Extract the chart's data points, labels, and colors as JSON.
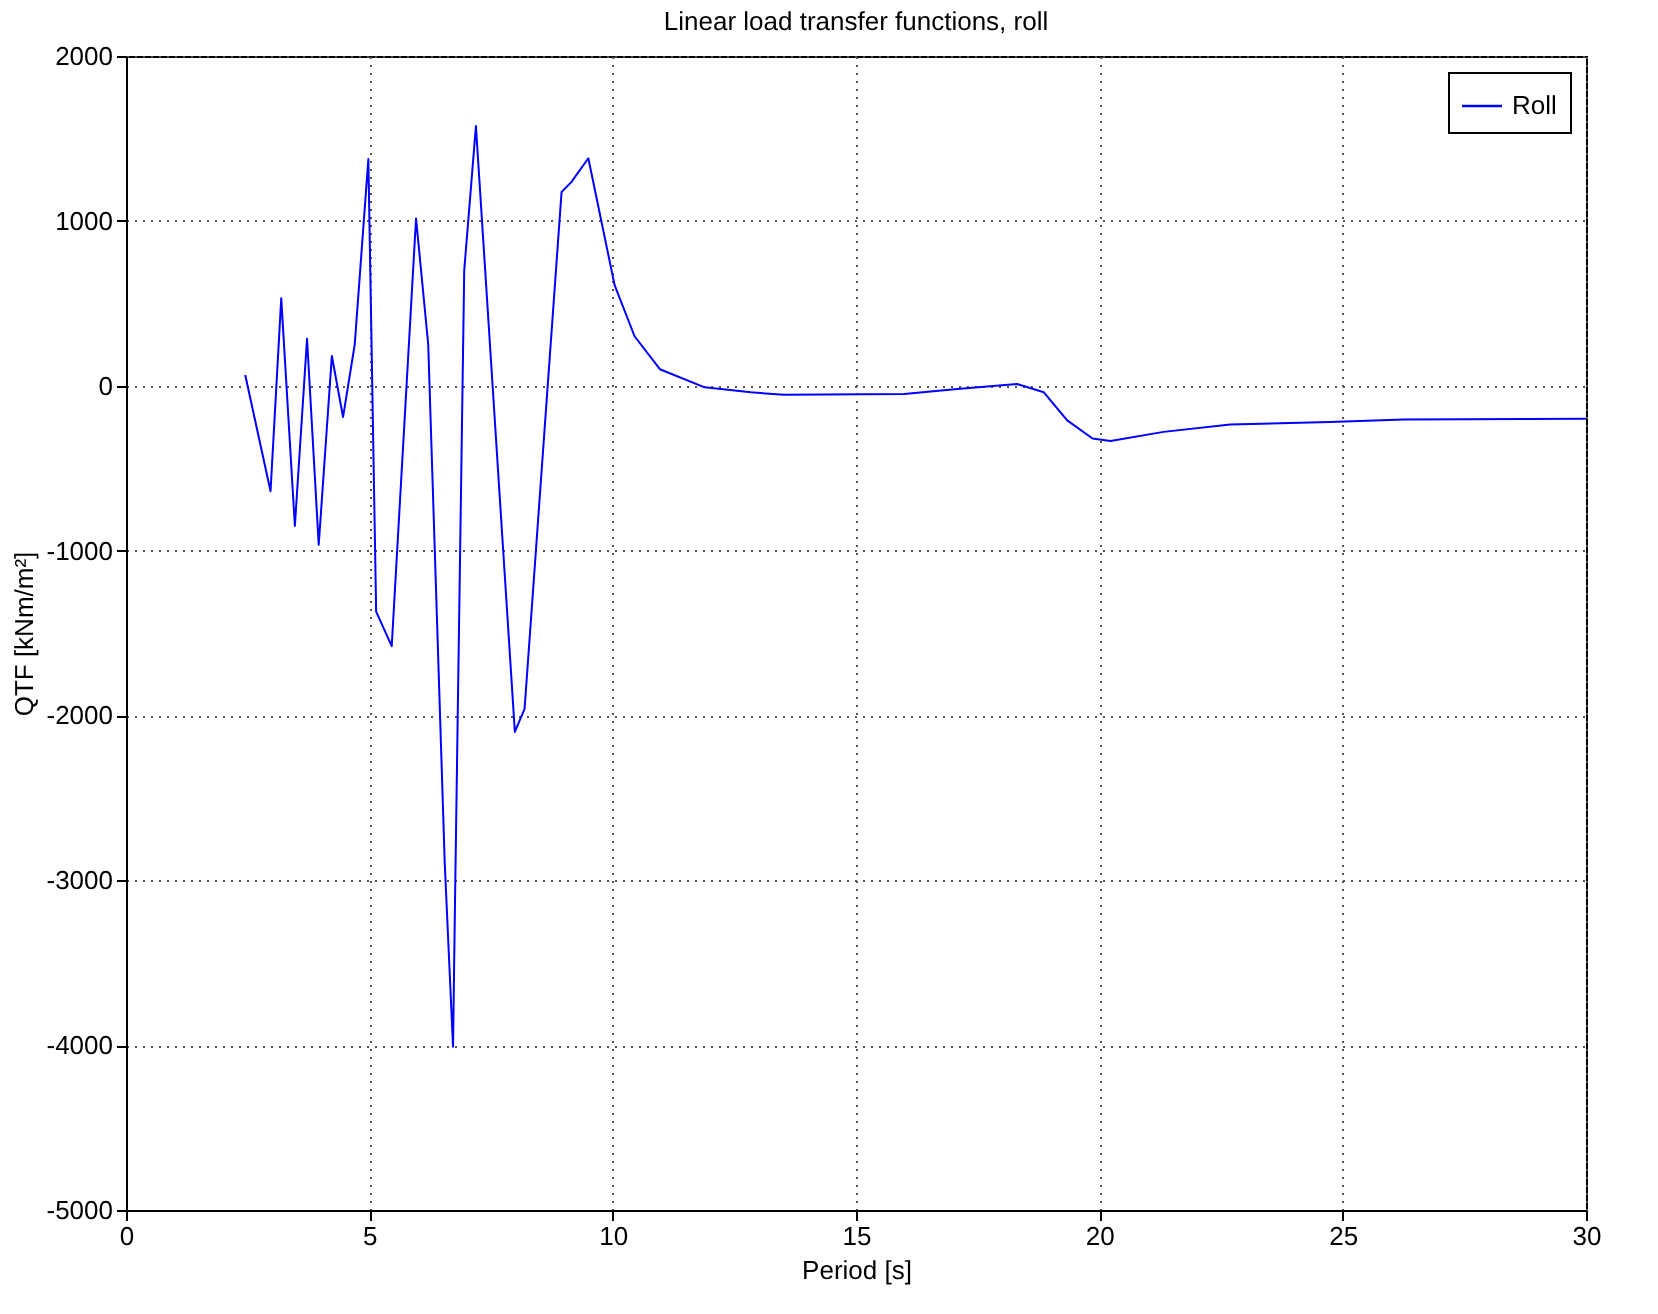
{
  "chart_data": {
    "type": "line",
    "title": "Linear load transfer functions, roll",
    "xlabel": "Period [s]",
    "ylabel": "QTF [kNm/m²]",
    "xlim": [
      0,
      30
    ],
    "xticks": [
      0,
      5,
      10,
      15,
      20,
      25,
      30
    ],
    "ylim": [
      -5000,
      2000
    ],
    "yticks": [
      -5000,
      -4000,
      -3000,
      -2000,
      -1000,
      0,
      1000,
      2000
    ],
    "grid": true,
    "legend": "top right",
    "line_style": "solid",
    "marker": "none",
    "series": [
      {
        "name": "Roll",
        "color": "#0000ff",
        "x": [
          2.45,
          2.97,
          3.19,
          3.47,
          3.72,
          3.96,
          4.23,
          4.46,
          4.7,
          4.98,
          5.14,
          5.46,
          5.96,
          6.21,
          6.55,
          6.72,
          6.76,
          6.95,
          7.19,
          7.99,
          8.19,
          8.95,
          9.15,
          9.5,
          10.04,
          10.45,
          10.97,
          11.89,
          12.84,
          13.52,
          15.99,
          17.08,
          18.31,
          18.86,
          19.34,
          19.86,
          20.23,
          21.32,
          22.69,
          24.74,
          26.25,
          30
        ],
        "values": [
          65,
          -640,
          530,
          -850,
          285,
          -965,
          180,
          -190,
          250,
          1375,
          -1370,
          -1580,
          1015,
          250,
          -2900,
          -4010,
          -3140,
          700,
          1575,
          -2100,
          -1960,
          1175,
          1235,
          1380,
          610,
          300,
          100,
          -10,
          -40,
          -55,
          -50,
          -20,
          10,
          -40,
          -210,
          -320,
          -335,
          -280,
          -235,
          -220,
          -205,
          -200
        ]
      }
    ]
  }
}
